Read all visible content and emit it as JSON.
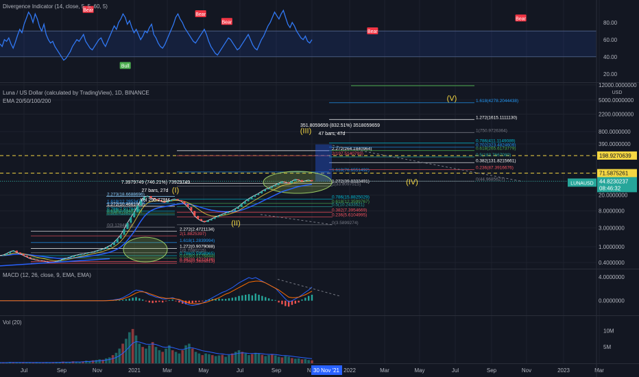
{
  "chart_data": {
    "type": "line",
    "panes": {
      "divergence": {
        "title": "Divergence Indicator (14, close, 5, 5, 60, 5)",
        "y_ticks": [
          "80.00",
          "60.00",
          "40.00",
          "20.00"
        ],
        "band": [
          40,
          70
        ],
        "signals": [
          {
            "label": "Bear",
            "x": 0.138,
            "y": 88
          },
          {
            "label": "Bull",
            "x": 0.196,
            "y": 37
          },
          {
            "label": "Bear",
            "x": 0.314,
            "y": 83
          },
          {
            "label": "Bear",
            "x": 0.355,
            "y": 74
          },
          {
            "label": "Bear",
            "x": 0.583,
            "y": 63
          },
          {
            "label": "Bear",
            "x": 0.815,
            "y": 78
          }
        ],
        "values": [
          55,
          52,
          60,
          58,
          62,
          55,
          50,
          57,
          65,
          72,
          68,
          78,
          85,
          92,
          88,
          80,
          90,
          84,
          75,
          70,
          78,
          66,
          60,
          56,
          58,
          52,
          48,
          44,
          40,
          36,
          38,
          42,
          46,
          52,
          56,
          60,
          58,
          62,
          66,
          58,
          54,
          50,
          48,
          52,
          56,
          60,
          62,
          56,
          52,
          58,
          64,
          70,
          76,
          72,
          80,
          84,
          90,
          86,
          78,
          82,
          74,
          68,
          72,
          66,
          60,
          64,
          70,
          68,
          74,
          78,
          66,
          62,
          56,
          52,
          50,
          54,
          60,
          66,
          72,
          78,
          86,
          90,
          84,
          80,
          74,
          70,
          66,
          62,
          58,
          56,
          60,
          64,
          68,
          72,
          66,
          58,
          52,
          48,
          44,
          42,
          46,
          50,
          54,
          58,
          62,
          60,
          56,
          52,
          48,
          50,
          54,
          58,
          62,
          66,
          60,
          54,
          50,
          48,
          54,
          60,
          64,
          70,
          76,
          80,
          86,
          92,
          88,
          84,
          90,
          94,
          86,
          78,
          74,
          80,
          76,
          70,
          66,
          62,
          60,
          64,
          58,
          56,
          60
        ]
      },
      "price": {
        "title": "Luna / US Dollar (calculated by TradingView), 1D, BINANCE",
        "overlay": "EMA 20/50/100/200",
        "unit": "USD",
        "y_ticks": [
          "12000.0000000",
          "5000.0000000",
          "2200.0000000",
          "800.0000000",
          "390.0000000",
          "71.5875261",
          "44.8230237",
          "20.0000000",
          "8.0000000",
          "3.0000000",
          "1.0000000",
          "0.4000000"
        ],
        "ticker": "LUNAUSD",
        "last_price": "44.8230237",
        "countdown": "08:46:32",
        "h_markers": [
          "198.9270639",
          "71.5875261"
        ],
        "values": [
          0.6,
          0.62,
          0.68,
          0.75,
          0.8,
          0.72,
          0.66,
          0.6,
          0.55,
          0.5,
          0.48,
          0.46,
          0.45,
          0.44,
          0.42,
          0.4,
          0.41,
          0.43,
          0.46,
          0.5,
          0.52,
          0.55,
          0.6,
          0.62,
          0.65,
          0.66,
          0.7,
          0.72,
          0.75,
          0.8,
          0.85,
          0.9,
          1.0,
          1.1,
          1.3,
          1.6,
          2.0,
          2.8,
          4.0,
          5.5,
          7.4,
          11,
          15,
          18,
          19,
          17,
          16,
          15,
          14,
          13,
          14,
          15,
          16,
          15,
          14,
          12,
          10,
          8,
          6,
          5,
          4.5,
          4.2,
          4.6,
          5,
          5.5,
          6,
          6.5,
          7,
          7.5,
          8,
          9,
          10,
          12,
          14,
          16,
          18,
          20,
          22,
          25,
          28,
          30,
          33,
          36,
          40,
          44,
          42,
          40,
          45,
          50,
          48,
          44,
          46,
          48,
          44.8
        ],
        "waves": [
          {
            "label": "(I)",
            "price": 19
          },
          {
            "label": "(II)",
            "price": 4.6
          },
          {
            "label": "(III)",
            "price": 360
          },
          {
            "label": "(IV)",
            "price": 42
          },
          {
            "label": "(V)",
            "price": 4300
          }
        ],
        "wave_info": [
          {
            "price_text": "7.3979749 (746.21%) 73979749",
            "bars": "27 bars, 27d",
            "vol": "Vol 290.779M"
          },
          {
            "price_text": "351.8059659 (832.51%) 3518059659",
            "bars": "47 bars, 47d"
          }
        ],
        "fib_sets": [
          {
            "name": "fib1",
            "levels": [
              {
                "label": "2.273(18.6688696)",
                "price": 18.67,
                "color": "#8cd0ff"
              },
              {
                "label": "1.618(12.2853479)",
                "price": 12.29,
                "color": "#2196f3"
              },
              {
                "label": "1.272(10.4661083)",
                "price": 10.47,
                "color": "#ffffff"
              },
              {
                "label": "0.786(7.9178452)",
                "price": 7.92,
                "color": "#00bcd4"
              },
              {
                "label": "0.618(7.0349371)",
                "price": 7.03,
                "color": "#4caf50"
              },
              {
                "label": "0.5(6.41383)",
                "price": 6.41,
                "color": "#26a69a"
              },
              {
                "label": "0(3.1284693)",
                "price": 3.13,
                "color": "#787b86"
              }
            ]
          },
          {
            "name": "fib2",
            "levels": [
              {
                "label": "2.272(2.4721134)",
                "price": 2.47,
                "color": "#ffffff"
              },
              {
                "label": "2(1.8825397)",
                "price": 1.88,
                "color": "#f7525f"
              },
              {
                "label": "1.618(1.2839994)",
                "price": 1.28,
                "color": "#2196f3"
              },
              {
                "label": "1.272(0.9079088)",
                "price": 0.908,
                "color": "#ffffff"
              },
              {
                "label": "1(0.7080215)",
                "price": 0.708,
                "color": "#787b86"
              },
              {
                "label": "0.786(0.5956965)",
                "price": 0.596,
                "color": "#00bcd4"
              },
              {
                "label": "0.618(0.5176844)",
                "price": 0.518,
                "color": "#4caf50"
              },
              {
                "label": "0.382(0.4222436)",
                "price": 0.422,
                "color": "#f7525f"
              },
              {
                "label": "0.236(0.3826813)",
                "price": 0.383,
                "color": "#f7525f"
              }
            ]
          },
          {
            "name": "fib3",
            "levels": [
              {
                "label": "1.272(39.8333491)",
                "price": 39.83,
                "color": "#ffffff"
              },
              {
                "label": "1(33.8097515)",
                "price": 33.81,
                "color": "#787b86"
              },
              {
                "label": "0.786(15.8825029)",
                "price": 15.88,
                "color": "#00bcd4"
              },
              {
                "label": "0.618(12.3599767)",
                "price": 12.36,
                "color": "#4caf50"
              },
              {
                "label": "0.5(10.2433521)",
                "price": 10.24,
                "color": "#26a69a"
              },
              {
                "label": "0.382(7.3954669)",
                "price": 7.4,
                "color": "#f7525f"
              },
              {
                "label": "0.236(5.6104995)",
                "price": 5.61,
                "color": "#f7525f"
              },
              {
                "label": "0(3.5899274)",
                "price": 3.59,
                "color": "#787b86"
              }
            ]
          },
          {
            "name": "fib4",
            "levels": [
              {
                "label": "2.272(264.1840964)",
                "price": 264.18,
                "color": "#ffffff"
              },
              {
                "label": "2(197.5140793)",
                "price": 197.51,
                "color": "#f7525f"
              },
              {
                "label": "1.618(76.6551492)",
                "price": 76.66,
                "color": "#2196f3"
              }
            ]
          },
          {
            "name": "fib5",
            "levels": [
              {
                "label": "1.618(4278.2044438)",
                "price": 4278.2,
                "color": "#2196f3"
              },
              {
                "label": "1.272(1615.1111130)",
                "price": 1615.11,
                "color": "#ffffff"
              },
              {
                "label": "1(750.9726364)",
                "price": 750.97,
                "color": "#787b86"
              },
              {
                "label": "0.786(411.1149089)",
                "price": 411.11,
                "color": "#00bcd4"
              },
              {
                "label": "0.702(323.4824609)",
                "price": 323.48,
                "color": "#2196f3"
              },
              {
                "label": "0.618(265.6173779)",
                "price": 265.62,
                "color": "#4caf50"
              },
              {
                "label": "0.5(183.7667080)",
                "price": 183.77,
                "color": "#26a69a"
              },
              {
                "label": "0.382(131.8215661)",
                "price": 131.82,
                "color": "#ffffff"
              },
              {
                "label": "0.236(87.3916676)",
                "price": 87.39,
                "color": "#f7525f"
              },
              {
                "label": "0(44.9685627)",
                "price": 44.97,
                "color": "#787b86"
              }
            ]
          }
        ]
      },
      "macd": {
        "title": "MACD (12, 26, close, 9, EMA, EMA)",
        "y_ticks": [
          "4.0000000",
          "0.0000000"
        ],
        "hist": [
          0,
          0,
          0,
          0,
          0,
          0,
          0,
          0,
          0,
          0,
          0,
          0,
          0,
          0,
          0,
          0,
          0,
          0,
          0,
          0,
          0,
          0,
          0,
          0,
          0,
          0,
          0,
          0,
          0,
          0,
          0,
          0,
          0.01,
          0.02,
          0.05,
          0.08,
          0.1,
          0.15,
          0.25,
          0.35,
          0.5,
          0.6,
          0.4,
          0.2,
          -0.1,
          -0.3,
          -0.4,
          -0.3,
          -0.2,
          -0.3,
          -0.1,
          0.1,
          0.2,
          -0.1,
          -0.3,
          -0.5,
          -0.6,
          -0.5,
          -0.4,
          -0.3,
          -0.2,
          -0.1,
          0.1,
          0.2,
          0.3,
          0.3,
          0.35,
          0.3,
          0.3,
          0.4,
          0.5,
          0.6,
          0.8,
          0.9,
          1.0,
          1.1,
          0.9,
          1.2,
          1.0,
          0.8,
          0.6,
          0.4,
          0.2,
          0.1,
          -0.3,
          -0.6,
          -0.9,
          -1.0,
          -0.7,
          -0.5,
          -0.3,
          0.2,
          0.5,
          0.8,
          1.0
        ],
        "macd": [
          0,
          0,
          0,
          0,
          0,
          0,
          0,
          0,
          0,
          0,
          0,
          0,
          0,
          0,
          0,
          0,
          0,
          0,
          0,
          0,
          0,
          0,
          0,
          0,
          0,
          0,
          0,
          0,
          0,
          0,
          0,
          0,
          0.02,
          0.05,
          0.1,
          0.2,
          0.3,
          0.5,
          0.8,
          1.1,
          1.5,
          1.8,
          1.7,
          1.6,
          1.3,
          1.0,
          0.8,
          0.6,
          0.5,
          0.3,
          0.3,
          0.4,
          0.5,
          0.3,
          0.1,
          -0.2,
          -0.5,
          -0.7,
          -0.8,
          -0.7,
          -0.6,
          -0.4,
          -0.1,
          0.2,
          0.5,
          0.8,
          1.1,
          1.4,
          1.6,
          1.9,
          2.2,
          2.6,
          3.0,
          3.3,
          3.6,
          3.9,
          3.7,
          3.9,
          3.6,
          3.3,
          3.0,
          2.7,
          2.4,
          2.1,
          1.5,
          0.9,
          0.3,
          -0.2,
          0.0,
          0.3,
          0.6,
          1.0,
          1.4,
          1.8,
          2.3
        ],
        "signal": [
          0,
          0,
          0,
          0,
          0,
          0,
          0,
          0,
          0,
          0,
          0,
          0,
          0,
          0,
          0,
          0,
          0,
          0,
          0,
          0,
          0,
          0,
          0,
          0,
          0,
          0,
          0,
          0,
          0,
          0,
          0,
          0,
          0.0,
          0.02,
          0.05,
          0.1,
          0.18,
          0.3,
          0.5,
          0.7,
          1.0,
          1.3,
          1.5,
          1.5,
          1.4,
          1.2,
          1.0,
          0.8,
          0.6,
          0.5,
          0.4,
          0.4,
          0.4,
          0.3,
          0.2,
          0.0,
          -0.2,
          -0.4,
          -0.5,
          -0.5,
          -0.5,
          -0.4,
          -0.3,
          -0.1,
          0.1,
          0.3,
          0.5,
          0.8,
          1.1,
          1.3,
          1.6,
          1.9,
          2.2,
          2.5,
          2.8,
          3.1,
          3.2,
          3.3,
          3.3,
          3.2,
          3.0,
          2.7,
          2.4,
          2.1,
          1.8,
          1.4,
          1.0,
          0.6,
          0.5,
          0.5,
          0.6,
          0.8,
          1.0,
          1.3,
          1.6
        ]
      },
      "volume": {
        "title": "Vol (20)",
        "y_ticks": [
          "10M",
          "5M"
        ],
        "values": [
          0.2,
          0.3,
          0.2,
          0.4,
          0.3,
          0.3,
          0.2,
          0.2,
          0.3,
          0.2,
          0.2,
          0.3,
          0.2,
          0.2,
          0.3,
          0.2,
          0.3,
          0.4,
          0.3,
          0.5,
          0.4,
          0.3,
          0.6,
          0.5,
          0.4,
          0.6,
          0.8,
          0.7,
          0.9,
          1.0,
          1.2,
          1.1,
          1.5,
          1.8,
          2.5,
          3.2,
          4.5,
          6.0,
          7.5,
          9.5,
          10.5,
          8.5,
          6.0,
          5.0,
          4.5,
          5.5,
          6.5,
          5.0,
          4.0,
          3.5,
          4.5,
          5.5,
          4.0,
          3.5,
          3.0,
          4.0,
          5.5,
          6.0,
          4.5,
          3.5,
          3.0,
          2.5,
          3.0,
          2.8,
          2.5,
          2.2,
          2.4,
          2.6,
          2.0,
          2.5,
          3.0,
          3.5,
          4.0,
          3.5,
          3.0,
          2.5,
          2.8,
          3.2,
          3.0,
          2.6,
          2.2,
          2.5,
          2.8,
          2.4,
          2.0,
          1.8,
          2.2,
          2.0,
          1.6,
          1.4,
          1.5,
          1.2,
          1.3,
          1.0,
          0.9
        ]
      }
    },
    "x_axis": {
      "ticks": [
        "Jul",
        "Sep",
        "Nov",
        "2021",
        "Mar",
        "May",
        "Jul",
        "Sep",
        "Nov",
        "2022",
        "Mar",
        "May",
        "Jul",
        "Sep",
        "Nov",
        "2023",
        "Mar"
      ],
      "cursor_label": "30 Nov '21"
    },
    "colors": {
      "bg": "#131722",
      "grid": "#1e222d",
      "text": "#b2b5be",
      "blue": "#2962ff",
      "rsi": "#3179f5",
      "yellow": "#f5d742",
      "up": "#26a69a",
      "down": "#ef5350"
    }
  }
}
